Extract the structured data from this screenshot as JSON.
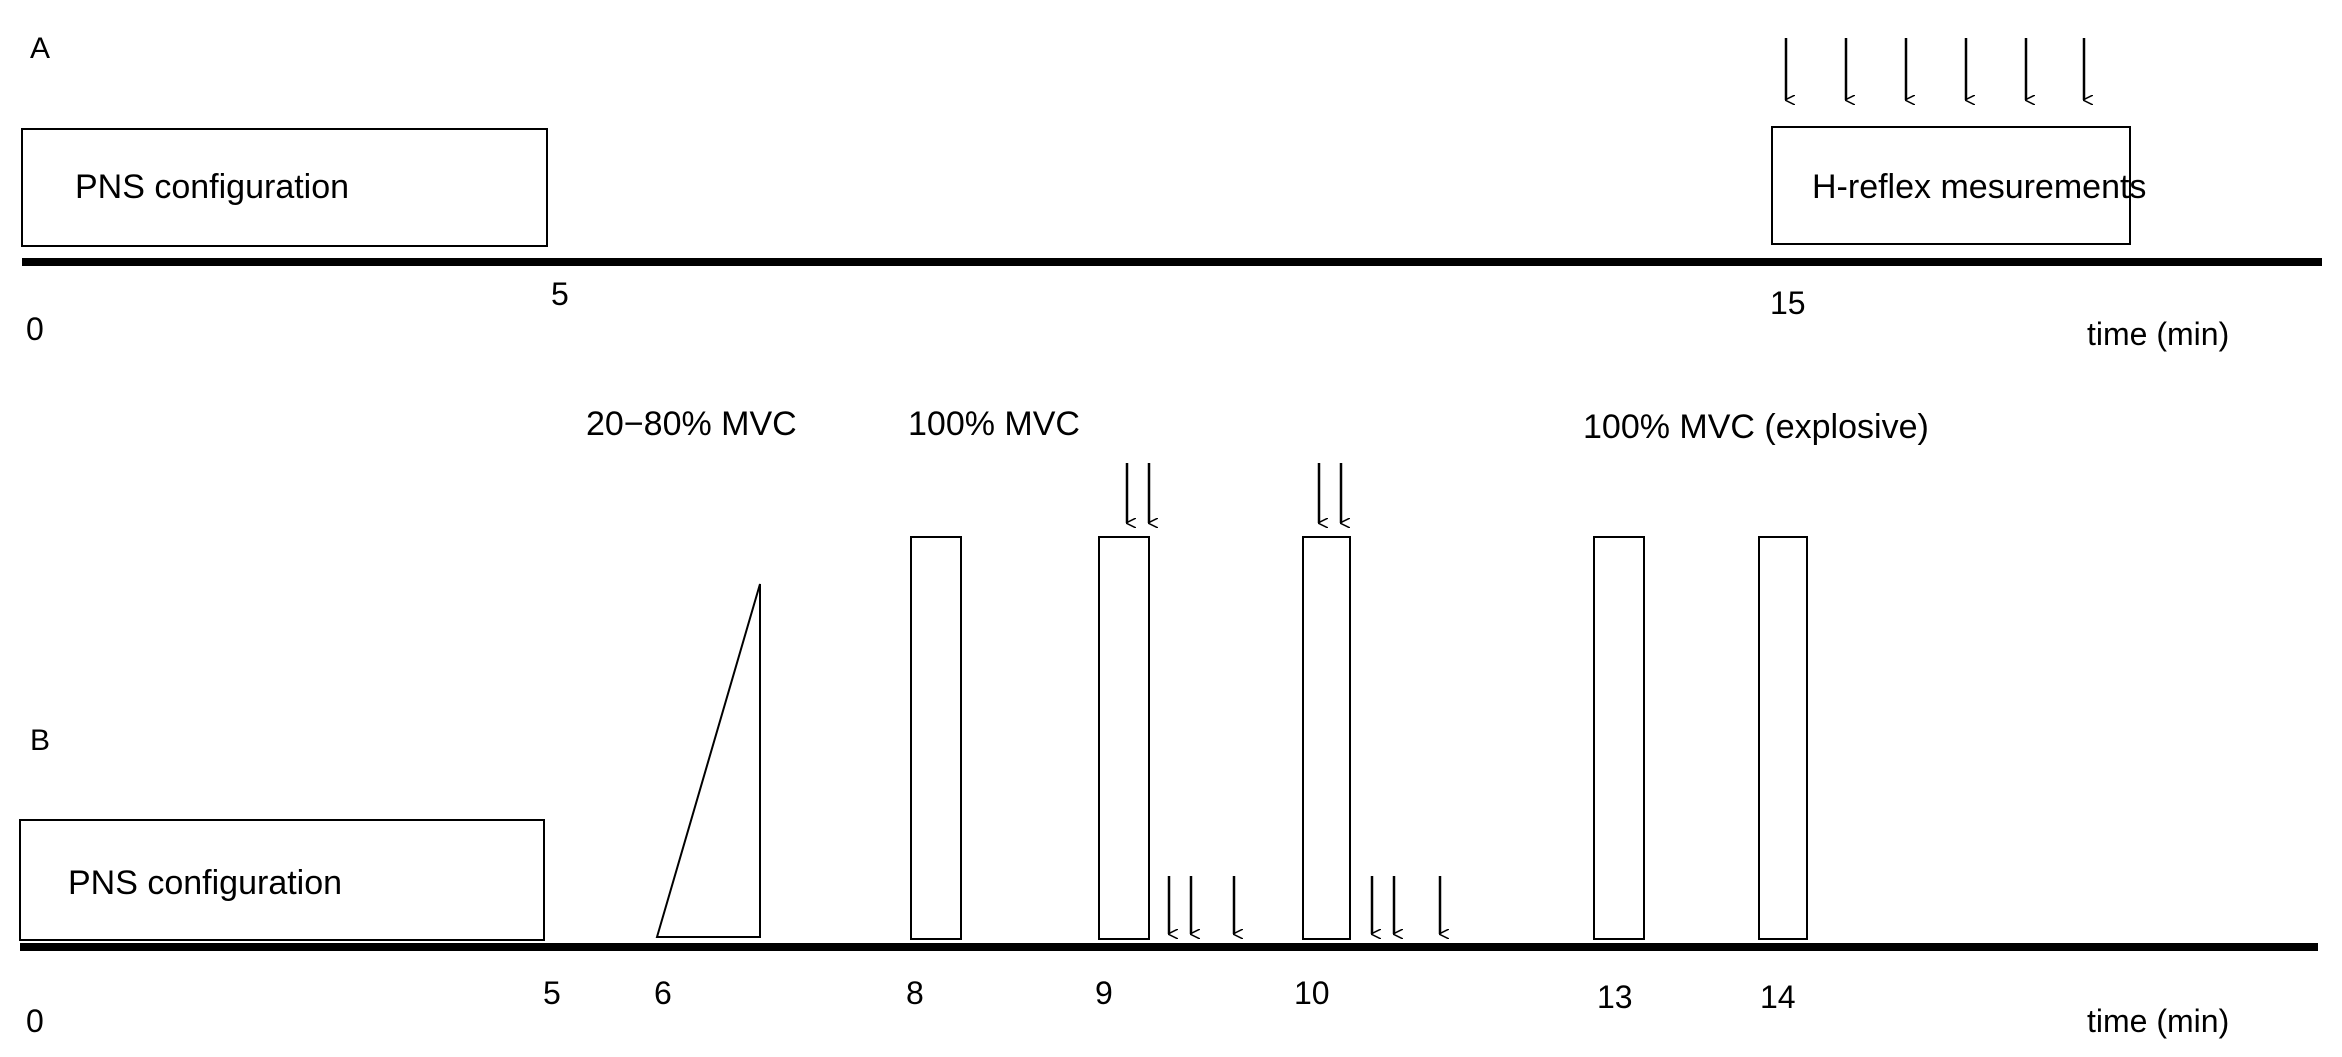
{
  "panels": {
    "a": {
      "letter": "A",
      "box_left_label": "PNS configuration",
      "box_right_label": "H-reflex mesurements",
      "ticks": [
        "0",
        "5",
        "15"
      ],
      "axis_label": "time (min)",
      "arrow_count": 6
    },
    "b": {
      "letter": "B",
      "box_label": "PNS configuration",
      "label_ramp": "20−80% MVC",
      "label_mvc": "100% MVC",
      "label_explosive": "100% MVC (explosive)",
      "ticks": [
        "0",
        "5",
        "6",
        "8",
        "9",
        "10",
        "13",
        "14"
      ],
      "axis_label": "time (min)"
    }
  },
  "colors": {
    "ink": "#000000",
    "background": "#ffffff"
  }
}
